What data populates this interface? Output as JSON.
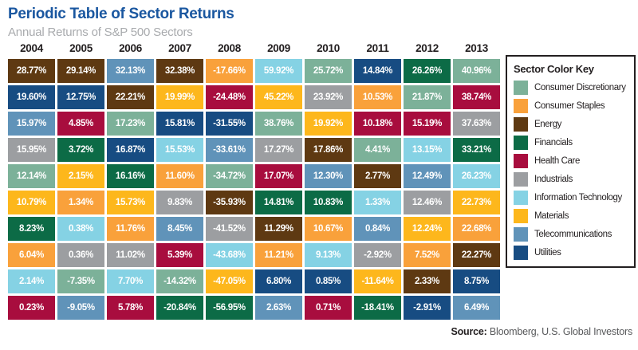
{
  "header": {
    "title": "Periodic Table of Sector Returns",
    "subtitle": "Annual Returns of S&P 500 Sectors"
  },
  "legend": {
    "title": "Sector Color Key",
    "items": [
      {
        "label": "Consumer Discretionary",
        "color": "#7CB199"
      },
      {
        "label": "Consumer Staples",
        "color": "#F9A13B"
      },
      {
        "label": "Energy",
        "color": "#5E3912"
      },
      {
        "label": "Financials",
        "color": "#0C6B46"
      },
      {
        "label": "Health Care",
        "color": "#A80D3E"
      },
      {
        "label": "Industrials",
        "color": "#9C9EA1"
      },
      {
        "label": "Information Technology",
        "color": "#85D2E4"
      },
      {
        "label": "Materials",
        "color": "#FDB71C"
      },
      {
        "label": "Telecommunications",
        "color": "#6093B9"
      },
      {
        "label": "Utilities",
        "color": "#174C82"
      }
    ]
  },
  "source": {
    "label": "Source:",
    "text": "Bloomberg, U.S. Global Investors"
  },
  "chart_data": {
    "type": "heatmap",
    "title": "Periodic Table of Sector Returns",
    "subtitle": "Annual Returns of S&P 500 Sectors",
    "years": [
      "2004",
      "2005",
      "2006",
      "2007",
      "2008",
      "2009",
      "2010",
      "2011",
      "2012",
      "2013"
    ],
    "legend_position": "right",
    "columns": [
      {
        "year": "2004",
        "cells": [
          {
            "value": "28.77%",
            "sector": "Energy"
          },
          {
            "value": "19.60%",
            "sector": "Utilities"
          },
          {
            "value": "15.97%",
            "sector": "Telecommunications"
          },
          {
            "value": "15.95%",
            "sector": "Industrials"
          },
          {
            "value": "12.14%",
            "sector": "Consumer Discretionary"
          },
          {
            "value": "10.79%",
            "sector": "Materials"
          },
          {
            "value": "8.23%",
            "sector": "Financials"
          },
          {
            "value": "6.04%",
            "sector": "Consumer Staples"
          },
          {
            "value": "2.14%",
            "sector": "Information Technology"
          },
          {
            "value": "0.23%",
            "sector": "Health Care"
          }
        ]
      },
      {
        "year": "2005",
        "cells": [
          {
            "value": "29.14%",
            "sector": "Energy"
          },
          {
            "value": "12.75%",
            "sector": "Utilities"
          },
          {
            "value": "4.85%",
            "sector": "Health Care"
          },
          {
            "value": "3.72%",
            "sector": "Financials"
          },
          {
            "value": "2.15%",
            "sector": "Materials"
          },
          {
            "value": "1.34%",
            "sector": "Consumer Staples"
          },
          {
            "value": "0.38%",
            "sector": "Information Technology"
          },
          {
            "value": "0.36%",
            "sector": "Industrials"
          },
          {
            "value": "-7.35%",
            "sector": "Consumer Discretionary"
          },
          {
            "value": "-9.05%",
            "sector": "Telecommunications"
          }
        ]
      },
      {
        "year": "2006",
        "cells": [
          {
            "value": "32.13%",
            "sector": "Telecommunications"
          },
          {
            "value": "22.21%",
            "sector": "Energy"
          },
          {
            "value": "17.23%",
            "sector": "Consumer Discretionary"
          },
          {
            "value": "16.87%",
            "sector": "Utilities"
          },
          {
            "value": "16.16%",
            "sector": "Financials"
          },
          {
            "value": "15.73%",
            "sector": "Materials"
          },
          {
            "value": "11.76%",
            "sector": "Consumer Staples"
          },
          {
            "value": "11.02%",
            "sector": "Industrials"
          },
          {
            "value": "7.70%",
            "sector": "Information Technology"
          },
          {
            "value": "5.78%",
            "sector": "Health Care"
          }
        ]
      },
      {
        "year": "2007",
        "cells": [
          {
            "value": "32.38%",
            "sector": "Energy"
          },
          {
            "value": "19.99%",
            "sector": "Materials"
          },
          {
            "value": "15.81%",
            "sector": "Utilities"
          },
          {
            "value": "15.53%",
            "sector": "Information Technology"
          },
          {
            "value": "11.60%",
            "sector": "Consumer Staples"
          },
          {
            "value": "9.83%",
            "sector": "Industrials"
          },
          {
            "value": "8.45%",
            "sector": "Telecommunications"
          },
          {
            "value": "5.39%",
            "sector": "Health Care"
          },
          {
            "value": "-14.32%",
            "sector": "Consumer Discretionary"
          },
          {
            "value": "-20.84%",
            "sector": "Financials"
          }
        ]
      },
      {
        "year": "2008",
        "cells": [
          {
            "value": "-17.66%",
            "sector": "Consumer Staples"
          },
          {
            "value": "-24.48%",
            "sector": "Health Care"
          },
          {
            "value": "-31.55%",
            "sector": "Utilities"
          },
          {
            "value": "-33.61%",
            "sector": "Telecommunications"
          },
          {
            "value": "-34.72%",
            "sector": "Consumer Discretionary"
          },
          {
            "value": "-35.93%",
            "sector": "Energy"
          },
          {
            "value": "-41.52%",
            "sector": "Industrials"
          },
          {
            "value": "-43.68%",
            "sector": "Information Technology"
          },
          {
            "value": "-47.05%",
            "sector": "Materials"
          },
          {
            "value": "-56.95%",
            "sector": "Financials"
          }
        ]
      },
      {
        "year": "2009",
        "cells": [
          {
            "value": "59.92%",
            "sector": "Information Technology"
          },
          {
            "value": "45.22%",
            "sector": "Materials"
          },
          {
            "value": "38.76%",
            "sector": "Consumer Discretionary"
          },
          {
            "value": "17.27%",
            "sector": "Industrials"
          },
          {
            "value": "17.07%",
            "sector": "Health Care"
          },
          {
            "value": "14.81%",
            "sector": "Financials"
          },
          {
            "value": "11.29%",
            "sector": "Energy"
          },
          {
            "value": "11.21%",
            "sector": "Consumer Staples"
          },
          {
            "value": "6.80%",
            "sector": "Utilities"
          },
          {
            "value": "2.63%",
            "sector": "Telecommunications"
          }
        ]
      },
      {
        "year": "2010",
        "cells": [
          {
            "value": "25.72%",
            "sector": "Consumer Discretionary"
          },
          {
            "value": "23.92%",
            "sector": "Industrials"
          },
          {
            "value": "19.92%",
            "sector": "Materials"
          },
          {
            "value": "17.86%",
            "sector": "Energy"
          },
          {
            "value": "12.30%",
            "sector": "Telecommunications"
          },
          {
            "value": "10.83%",
            "sector": "Financials"
          },
          {
            "value": "10.67%",
            "sector": "Consumer Staples"
          },
          {
            "value": "9.13%",
            "sector": "Information Technology"
          },
          {
            "value": "0.85%",
            "sector": "Utilities"
          },
          {
            "value": "0.71%",
            "sector": "Health Care"
          }
        ]
      },
      {
        "year": "2011",
        "cells": [
          {
            "value": "14.84%",
            "sector": "Utilities"
          },
          {
            "value": "10.53%",
            "sector": "Consumer Staples"
          },
          {
            "value": "10.18%",
            "sector": "Health Care"
          },
          {
            "value": "4.41%",
            "sector": "Consumer Discretionary"
          },
          {
            "value": "2.77%",
            "sector": "Energy"
          },
          {
            "value": "1.33%",
            "sector": "Information Technology"
          },
          {
            "value": "0.84%",
            "sector": "Telecommunications"
          },
          {
            "value": "-2.92%",
            "sector": "Industrials"
          },
          {
            "value": "-11.64%",
            "sector": "Materials"
          },
          {
            "value": "-18.41%",
            "sector": "Financials"
          }
        ]
      },
      {
        "year": "2012",
        "cells": [
          {
            "value": "26.26%",
            "sector": "Financials"
          },
          {
            "value": "21.87%",
            "sector": "Consumer Discretionary"
          },
          {
            "value": "15.19%",
            "sector": "Health Care"
          },
          {
            "value": "13.15%",
            "sector": "Information Technology"
          },
          {
            "value": "12.49%",
            "sector": "Telecommunications"
          },
          {
            "value": "12.46%",
            "sector": "Industrials"
          },
          {
            "value": "12.24%",
            "sector": "Materials"
          },
          {
            "value": "7.52%",
            "sector": "Consumer Staples"
          },
          {
            "value": "2.33%",
            "sector": "Energy"
          },
          {
            "value": "-2.91%",
            "sector": "Utilities"
          }
        ]
      },
      {
        "year": "2013",
        "cells": [
          {
            "value": "40.96%",
            "sector": "Consumer Discretionary"
          },
          {
            "value": "38.74%",
            "sector": "Health Care"
          },
          {
            "value": "37.63%",
            "sector": "Industrials"
          },
          {
            "value": "33.21%",
            "sector": "Financials"
          },
          {
            "value": "26.23%",
            "sector": "Information Technology"
          },
          {
            "value": "22.73%",
            "sector": "Materials"
          },
          {
            "value": "22.68%",
            "sector": "Consumer Staples"
          },
          {
            "value": "22.27%",
            "sector": "Energy"
          },
          {
            "value": "8.75%",
            "sector": "Utilities"
          },
          {
            "value": "6.49%",
            "sector": "Telecommunications"
          }
        ]
      }
    ]
  }
}
